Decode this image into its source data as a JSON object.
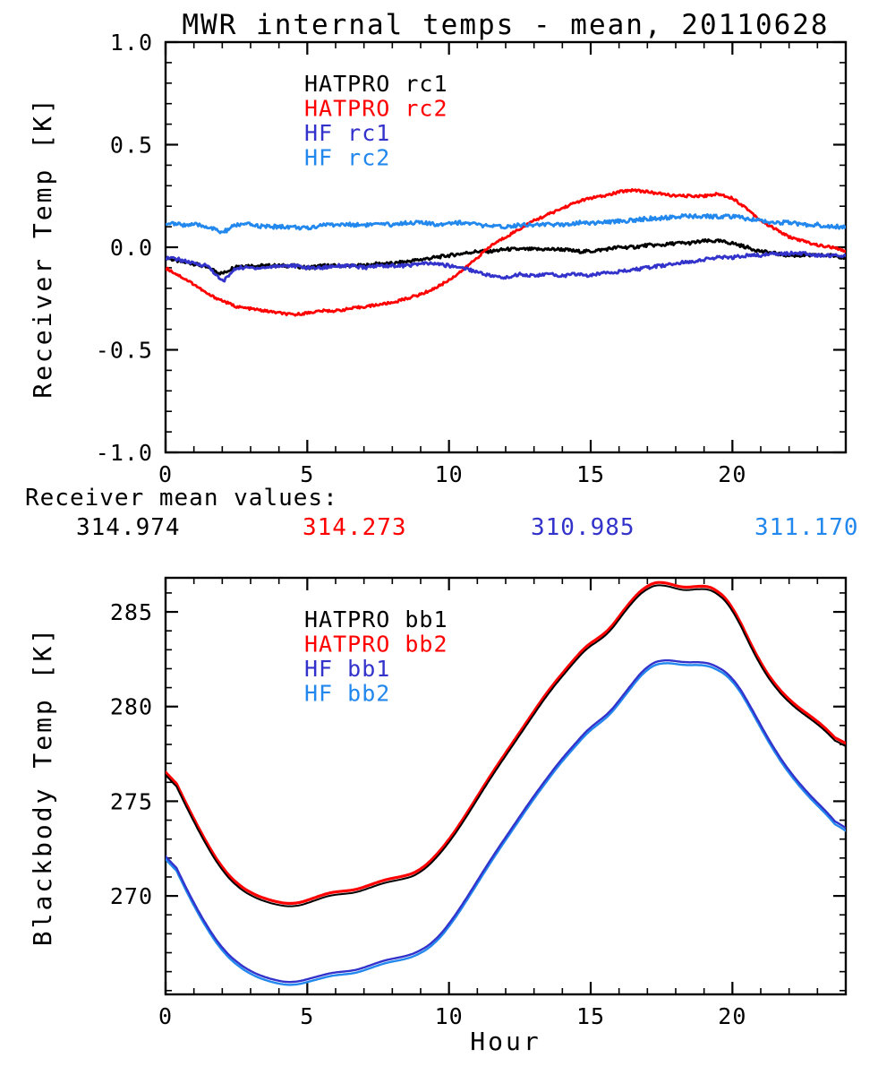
{
  "page": {
    "background": "#ffffff"
  },
  "colors": {
    "black": "#000000",
    "red": "#ff0000",
    "blue": "#3333cc",
    "light_blue": "#2288ee"
  },
  "mean_values": {
    "label": "Receiver mean values:",
    "values": [
      {
        "text": "314.974",
        "series": "HATPRO rc1",
        "color": "#000000"
      },
      {
        "text": "314.273",
        "series": "HATPRO rc2",
        "color": "#ff0000"
      },
      {
        "text": "310.985",
        "series": "HF rc1",
        "color": "#3333cc"
      },
      {
        "text": "311.170",
        "series": "HF rc2",
        "color": "#2288ee"
      }
    ]
  },
  "chart_data": [
    {
      "id": "receiver-temp",
      "type": "line",
      "title": "MWR internal temps - mean, 20110628",
      "xlabel": "",
      "ylabel": "Receiver Temp [K]",
      "xlim": [
        0,
        24
      ],
      "ylim": [
        -1.0,
        1.0
      ],
      "xticks": [
        {
          "v": 0,
          "label": "0"
        },
        {
          "v": 5,
          "label": "5"
        },
        {
          "v": 10,
          "label": "10"
        },
        {
          "v": 15,
          "label": "15"
        },
        {
          "v": 20,
          "label": "20"
        }
      ],
      "yticks": [
        {
          "v": 1.0,
          "label": "1.0"
        },
        {
          "v": 0.5,
          "label": "0.5"
        },
        {
          "v": 0.0,
          "label": "0.0"
        },
        {
          "v": -0.5,
          "label": "-0.5"
        },
        {
          "v": -1.0,
          "label": "-1.0"
        }
      ],
      "minor_x": 1,
      "minor_y": 0.1,
      "grid": false,
      "legend_position": "inside upper-left",
      "x": [
        0,
        0.5,
        1,
        1.5,
        2,
        2.5,
        3,
        3.5,
        4,
        4.5,
        5,
        5.5,
        6,
        6.5,
        7,
        7.5,
        8,
        8.5,
        9,
        9.5,
        10,
        10.5,
        11,
        11.5,
        12,
        12.5,
        13,
        13.5,
        14,
        14.5,
        15,
        15.5,
        16,
        16.5,
        17,
        17.5,
        18,
        18.5,
        19,
        19.5,
        20,
        20.5,
        21,
        21.5,
        22,
        22.5,
        23,
        23.5,
        24
      ],
      "series": [
        {
          "name": "HATPRO rc1",
          "color": "#000000",
          "values": [
            -0.05,
            -0.07,
            -0.08,
            -0.1,
            -0.13,
            -0.09,
            -0.09,
            -0.09,
            -0.09,
            -0.09,
            -0.1,
            -0.09,
            -0.09,
            -0.09,
            -0.09,
            -0.08,
            -0.08,
            -0.07,
            -0.06,
            -0.05,
            -0.04,
            -0.03,
            -0.02,
            -0.02,
            -0.01,
            -0.01,
            -0.01,
            -0.01,
            -0.01,
            -0.02,
            -0.02,
            -0.01,
            0.0,
            0.0,
            0.01,
            0.01,
            0.02,
            0.02,
            0.03,
            0.03,
            0.02,
            0.0,
            -0.02,
            -0.03,
            -0.04,
            -0.04,
            -0.04,
            -0.04,
            -0.05
          ]
        },
        {
          "name": "HATPRO rc2",
          "color": "#ff0000",
          "values": [
            -0.1,
            -0.14,
            -0.18,
            -0.23,
            -0.26,
            -0.29,
            -0.3,
            -0.31,
            -0.32,
            -0.33,
            -0.32,
            -0.31,
            -0.31,
            -0.3,
            -0.29,
            -0.28,
            -0.27,
            -0.25,
            -0.23,
            -0.2,
            -0.16,
            -0.11,
            -0.05,
            0.01,
            0.05,
            0.09,
            0.13,
            0.16,
            0.19,
            0.22,
            0.24,
            0.25,
            0.27,
            0.28,
            0.27,
            0.26,
            0.25,
            0.25,
            0.25,
            0.26,
            0.24,
            0.19,
            0.13,
            0.09,
            0.05,
            0.03,
            0.01,
            0.0,
            -0.02
          ]
        },
        {
          "name": "HF rc1",
          "color": "#3333cc",
          "values": [
            -0.05,
            -0.06,
            -0.08,
            -0.09,
            -0.17,
            -0.1,
            -0.1,
            -0.1,
            -0.09,
            -0.09,
            -0.1,
            -0.1,
            -0.09,
            -0.09,
            -0.1,
            -0.09,
            -0.09,
            -0.09,
            -0.08,
            -0.08,
            -0.09,
            -0.1,
            -0.12,
            -0.14,
            -0.15,
            -0.13,
            -0.14,
            -0.13,
            -0.14,
            -0.13,
            -0.14,
            -0.12,
            -0.12,
            -0.11,
            -0.1,
            -0.09,
            -0.08,
            -0.07,
            -0.06,
            -0.05,
            -0.05,
            -0.04,
            -0.04,
            -0.03,
            -0.03,
            -0.03,
            -0.04,
            -0.04,
            -0.04
          ]
        },
        {
          "name": "HF rc2",
          "color": "#2288ee",
          "values": [
            0.12,
            0.11,
            0.11,
            0.1,
            0.07,
            0.11,
            0.11,
            0.1,
            0.1,
            0.1,
            0.09,
            0.11,
            0.11,
            0.11,
            0.11,
            0.11,
            0.11,
            0.12,
            0.12,
            0.11,
            0.12,
            0.12,
            0.11,
            0.1,
            0.1,
            0.11,
            0.11,
            0.11,
            0.11,
            0.12,
            0.12,
            0.12,
            0.13,
            0.13,
            0.14,
            0.14,
            0.15,
            0.15,
            0.15,
            0.15,
            0.15,
            0.14,
            0.13,
            0.12,
            0.12,
            0.11,
            0.11,
            0.1,
            0.1
          ]
        }
      ]
    },
    {
      "id": "blackbody-temp",
      "type": "line",
      "title": "",
      "xlabel": "Hour",
      "ylabel": "Blackbody Temp [K]",
      "xlim": [
        0,
        24
      ],
      "ylim": [
        264.8,
        286.8
      ],
      "xticks": [
        {
          "v": 0,
          "label": "0"
        },
        {
          "v": 5,
          "label": "5"
        },
        {
          "v": 10,
          "label": "10"
        },
        {
          "v": 15,
          "label": "15"
        },
        {
          "v": 20,
          "label": "20"
        }
      ],
      "yticks": [
        {
          "v": 285,
          "label": "285"
        },
        {
          "v": 280,
          "label": "280"
        },
        {
          "v": 275,
          "label": "275"
        },
        {
          "v": 270,
          "label": "270"
        }
      ],
      "minor_x": 1,
      "minor_y": 1,
      "grid": false,
      "legend_position": "inside upper-left",
      "x": [
        0,
        0.5,
        1,
        1.5,
        2,
        2.5,
        3,
        3.5,
        4,
        4.5,
        5,
        5.5,
        6,
        6.5,
        7,
        7.5,
        8,
        8.5,
        9,
        9.5,
        10,
        10.5,
        11,
        11.5,
        12,
        12.5,
        13,
        13.5,
        14,
        14.5,
        15,
        15.5,
        16,
        16.5,
        17,
        17.5,
        18,
        18.5,
        19,
        19.5,
        20,
        20.5,
        21,
        21.5,
        22,
        22.5,
        23,
        23.5,
        24
      ],
      "series": [
        {
          "name": "HATPRO bb1",
          "color": "#000000",
          "values": [
            277.0,
            275.4,
            273.9,
            272.5,
            271.3,
            270.5,
            270.0,
            269.7,
            269.5,
            269.4,
            269.6,
            269.9,
            270.1,
            270.1,
            270.3,
            270.6,
            270.8,
            270.9,
            271.2,
            271.9,
            272.8,
            273.9,
            275.1,
            276.3,
            277.4,
            278.5,
            279.6,
            280.7,
            281.6,
            282.5,
            283.3,
            283.6,
            284.6,
            285.6,
            286.3,
            286.5,
            286.2,
            286.1,
            286.3,
            286.0,
            285.2,
            283.6,
            282.1,
            281.0,
            280.2,
            279.6,
            279.1,
            278.4,
            277.6
          ]
        },
        {
          "name": "HATPRO bb2",
          "color": "#ff0000",
          "values": [
            277.15,
            275.55,
            274.05,
            272.65,
            271.45,
            270.65,
            270.15,
            269.85,
            269.65,
            269.55,
            269.75,
            270.05,
            270.25,
            270.25,
            270.45,
            270.75,
            270.95,
            271.05,
            271.35,
            272.05,
            272.95,
            274.05,
            275.25,
            276.45,
            277.55,
            278.65,
            279.75,
            280.85,
            281.75,
            282.65,
            283.45,
            283.75,
            284.75,
            285.75,
            286.45,
            286.65,
            286.35,
            286.25,
            286.45,
            286.15,
            285.35,
            283.75,
            282.25,
            281.15,
            280.35,
            279.75,
            279.25,
            278.55,
            277.75
          ]
        },
        {
          "name": "HF bb1",
          "color": "#3333cc",
          "values": [
            272.7,
            271.1,
            269.6,
            268.3,
            267.2,
            266.5,
            266.0,
            265.7,
            265.5,
            265.4,
            265.6,
            265.8,
            266.0,
            266.0,
            266.2,
            266.5,
            266.7,
            266.8,
            267.1,
            267.6,
            268.5,
            269.6,
            270.8,
            272.0,
            273.1,
            274.2,
            275.3,
            276.3,
            277.3,
            278.1,
            279.0,
            279.4,
            280.3,
            281.3,
            282.2,
            282.5,
            282.4,
            282.3,
            282.4,
            282.1,
            281.6,
            280.4,
            279.0,
            277.7,
            276.6,
            275.7,
            274.9,
            274.2,
            273.2
          ]
        },
        {
          "name": "HF bb2",
          "color": "#2288ee",
          "values": [
            272.55,
            270.95,
            269.45,
            268.15,
            267.05,
            266.35,
            265.85,
            265.55,
            265.35,
            265.25,
            265.45,
            265.65,
            265.85,
            265.85,
            266.05,
            266.35,
            266.55,
            266.65,
            266.95,
            267.45,
            268.35,
            269.45,
            270.65,
            271.85,
            272.95,
            274.05,
            275.15,
            276.15,
            277.15,
            277.95,
            278.85,
            279.25,
            280.15,
            281.15,
            282.05,
            282.35,
            282.25,
            282.15,
            282.25,
            281.95,
            281.45,
            280.25,
            278.85,
            277.55,
            276.45,
            275.55,
            274.75,
            274.05,
            273.05
          ]
        }
      ]
    }
  ]
}
